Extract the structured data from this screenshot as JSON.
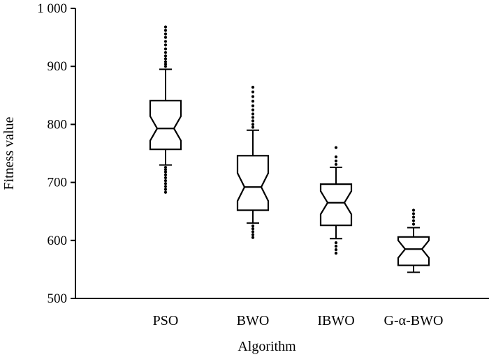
{
  "chart_data": {
    "type": "box",
    "xlabel": "Algorithm",
    "ylabel": "Fitness value",
    "ylim": [
      500,
      1000
    ],
    "yticks": [
      500,
      600,
      700,
      800,
      900,
      1000
    ],
    "ytick_labels": [
      "500",
      "600",
      "700",
      "800",
      "900",
      "1 000"
    ],
    "grid": false,
    "notched": true,
    "categories": [
      "PSO",
      "BWO",
      "IBWO",
      "G-α-BWO"
    ],
    "boxes": [
      {
        "category": "PSO",
        "whisker_low": 730,
        "q1": 757,
        "median": 793,
        "q3": 841,
        "whisker_high": 895,
        "notch_low": 772,
        "notch_high": 814,
        "outliers": [
          683,
          688,
          693,
          698,
          703,
          708,
          713,
          718,
          722,
          726,
          900,
          904,
          908,
          913,
          918,
          924,
          930,
          937,
          943,
          950,
          956,
          962,
          968
        ]
      },
      {
        "category": "BWO",
        "whisker_low": 630,
        "q1": 652,
        "median": 692,
        "q3": 746,
        "whisker_high": 790,
        "notch_low": 668,
        "notch_high": 716,
        "outliers": [
          605,
          610,
          615,
          620,
          625,
          795,
          800,
          806,
          812,
          818,
          825,
          832,
          840,
          848,
          856,
          864
        ]
      },
      {
        "category": "IBWO",
        "whisker_low": 603,
        "q1": 626,
        "median": 665,
        "q3": 697,
        "whisker_high": 726,
        "notch_low": 645,
        "notch_high": 685,
        "outliers": [
          578,
          584,
          590,
          596,
          731,
          737,
          744,
          760
        ]
      },
      {
        "category": "G-α-BWO",
        "whisker_low": 545,
        "q1": 557,
        "median": 585,
        "q3": 606,
        "whisker_high": 622,
        "notch_low": 570,
        "notch_high": 600,
        "outliers": [
          628,
          634,
          640,
          646,
          652
        ]
      }
    ]
  }
}
